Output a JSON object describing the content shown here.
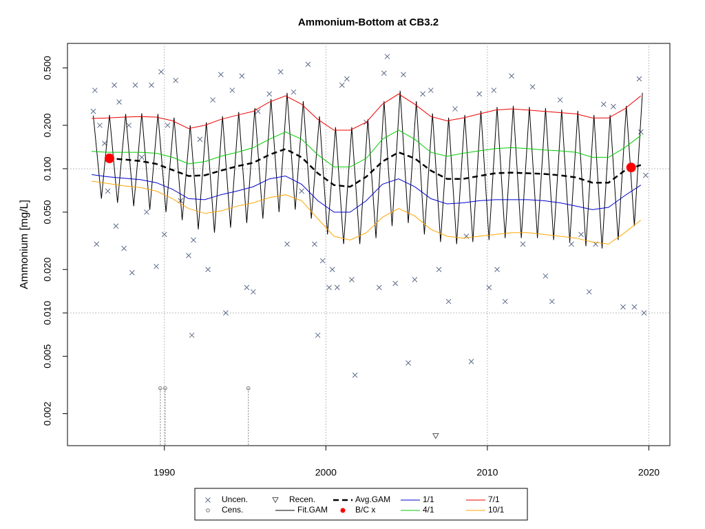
{
  "chart_data": {
    "type": "line",
    "title": "Ammonium-Bottom at CB3.2",
    "y_label": "Ammonium [mg/L]",
    "log_y": true,
    "xlim": [
      1984,
      2021.3
    ],
    "ylim": [
      0.0012,
      0.74
    ],
    "xticks": [
      1990,
      2000,
      2010,
      2020
    ],
    "yticks": [
      0.002,
      0.005,
      {
        "value": 0.01,
        "label": "0.010"
      },
      {
        "value": 0.02,
        "label": "0.020"
      },
      {
        "value": 0.05,
        "label": "0.050"
      },
      {
        "value": 0.1,
        "label": "0.100"
      },
      {
        "value": 0.2,
        "label": "0.200"
      },
      {
        "value": 0.5,
        "label": "0.500"
      }
    ],
    "ygrid": [
      0.01,
      0.1
    ],
    "xgrid": true,
    "legend": "bottom",
    "series": [
      {
        "name": "Uncen.",
        "marker": "x",
        "color": "#5a6a88",
        "x": [
          1985.6,
          1985.7,
          1985.8,
          1986.0,
          1986.3,
          1986.5,
          1986.9,
          1987.0,
          1987.2,
          1987.5,
          1987.8,
          1988.0,
          1988.2,
          1988.6,
          1988.9,
          1989.2,
          1989.5,
          1989.8,
          1990.0,
          1990.2,
          1990.7,
          1991.0,
          1991.5,
          1991.8,
          1991.7,
          1992.2,
          1992.7,
          1993.0,
          1993.5,
          1993.8,
          1994.2,
          1994.8,
          1995.1,
          1995.5,
          1995.8,
          1996.5,
          1997.2,
          1997.6,
          1998.0,
          1998.5,
          1998.9,
          1999.3,
          1999.5,
          1999.8,
          2000.2,
          2000.4,
          2000.7,
          2001.0,
          2001.3,
          2001.6,
          2001.8,
          2002.5,
          2003.3,
          2003.6,
          2003.8,
          2004.3,
          2004.8,
          2005.1,
          2005.5,
          2006.0,
          2006.5,
          2007.0,
          2007.6,
          2008.0,
          2008.7,
          2009.0,
          2009.5,
          2010.1,
          2010.4,
          2010.6,
          2011.1,
          2011.5,
          2012.2,
          2012.8,
          2013.6,
          2014.0,
          2014.5,
          2015.2,
          2015.8,
          2016.3,
          2016.7,
          2017.2,
          2017.8,
          2018.4,
          2019.1,
          2019.4,
          2019.7,
          2019.5,
          2019.8
        ],
        "values": [
          0.25,
          0.35,
          0.03,
          0.2,
          0.15,
          0.07,
          0.38,
          0.04,
          0.29,
          0.028,
          0.2,
          0.019,
          0.38,
          0.12,
          0.05,
          0.38,
          0.021,
          0.47,
          0.035,
          0.2,
          0.41,
          0.06,
          0.025,
          0.032,
          0.007,
          0.16,
          0.02,
          0.3,
          0.45,
          0.01,
          0.35,
          0.44,
          0.015,
          0.014,
          0.25,
          0.33,
          0.47,
          0.03,
          0.34,
          0.07,
          0.53,
          0.03,
          0.007,
          0.023,
          0.015,
          0.02,
          0.015,
          0.38,
          0.42,
          0.017,
          0.0037,
          0.21,
          0.015,
          0.46,
          0.6,
          0.016,
          0.45,
          0.0045,
          0.017,
          0.33,
          0.35,
          0.02,
          0.012,
          0.26,
          0.034,
          0.0046,
          0.33,
          0.015,
          0.35,
          0.02,
          0.012,
          0.44,
          0.03,
          0.37,
          0.018,
          0.012,
          0.3,
          0.03,
          0.035,
          0.014,
          0.03,
          0.28,
          0.27,
          0.011,
          0.011,
          0.42,
          0.01,
          0.18,
          0.09
        ]
      },
      {
        "name": "Cens.",
        "marker": "circle",
        "color": "#777777",
        "x": [
          1989.75,
          1990.05,
          1995.2
        ],
        "values": [
          0.003,
          0.003,
          0.003
        ]
      },
      {
        "name": "Recen.",
        "marker": "triangle",
        "color": "#555555",
        "x": [
          2006.8
        ],
        "values": [
          0.0014
        ]
      },
      {
        "name": "Fit.GAM",
        "marker": "line",
        "color": "#000000",
        "x": [
          1985.6,
          1986.1,
          1986.6,
          1987.1,
          1987.6,
          1988.1,
          1988.6,
          1989.1,
          1989.6,
          1990.1,
          1990.6,
          1991.1,
          1991.6,
          1992.1,
          1992.6,
          1993.1,
          1993.6,
          1994.1,
          1994.6,
          1995.1,
          1995.6,
          1996.1,
          1996.6,
          1997.1,
          1997.6,
          1998.1,
          1998.6,
          1999.1,
          1999.6,
          2000.1,
          2000.6,
          2001.1,
          2001.6,
          2002.1,
          2002.6,
          2003.1,
          2003.6,
          2004.1,
          2004.6,
          2005.1,
          2005.6,
          2006.1,
          2006.6,
          2007.1,
          2007.6,
          2008.1,
          2008.6,
          2009.1,
          2009.6,
          2010.1,
          2010.6,
          2011.1,
          2011.6,
          2012.1,
          2012.6,
          2013.1,
          2013.6,
          2014.1,
          2014.6,
          2015.1,
          2015.6,
          2016.1,
          2016.6,
          2017.1,
          2017.6,
          2018.1,
          2018.6,
          2019.1,
          2019.6
        ],
        "values": [
          0.234,
          0.062,
          0.236,
          0.058,
          0.24,
          0.055,
          0.242,
          0.052,
          0.24,
          0.05,
          0.226,
          0.044,
          0.2,
          0.038,
          0.21,
          0.036,
          0.231,
          0.039,
          0.247,
          0.042,
          0.263,
          0.045,
          0.305,
          0.05,
          0.336,
          0.052,
          0.294,
          0.045,
          0.231,
          0.035,
          0.194,
          0.03,
          0.194,
          0.03,
          0.22,
          0.033,
          0.294,
          0.04,
          0.347,
          0.042,
          0.294,
          0.035,
          0.242,
          0.031,
          0.226,
          0.03,
          0.236,
          0.031,
          0.252,
          0.032,
          0.268,
          0.033,
          0.273,
          0.033,
          0.268,
          0.033,
          0.263,
          0.032,
          0.257,
          0.031,
          0.252,
          0.029,
          0.236,
          0.028,
          0.236,
          0.032,
          0.273,
          0.04,
          0.336
        ]
      },
      {
        "name": "Avg.GAM",
        "marker": "line",
        "dash": true,
        "color": "#000000",
        "x": [
          1985.5,
          1986.5,
          1987.5,
          1988.5,
          1989.5,
          1990.5,
          1991.5,
          1992.5,
          1993.5,
          1994.5,
          1995.5,
          1996.5,
          1997.5,
          1998.5,
          1999.5,
          2000.5,
          2001.5,
          2002.5,
          2003.5,
          2004.5,
          2005.5,
          2006.5,
          2007.5,
          2008.5,
          2009.5,
          2010.5,
          2011.5,
          2012.5,
          2013.5,
          2014.5,
          2015.5,
          2016.5,
          2017.5,
          2018.5,
          2019.5
        ],
        "values": [
          null,
          0.118,
          0.116,
          0.113,
          0.108,
          0.098,
          0.089,
          0.09,
          0.097,
          0.104,
          0.11,
          0.125,
          0.137,
          0.12,
          0.093,
          0.077,
          0.075,
          0.088,
          0.112,
          0.13,
          0.118,
          0.097,
          0.085,
          0.085,
          0.089,
          0.093,
          0.094,
          0.093,
          0.092,
          0.09,
          0.087,
          0.08,
          0.08,
          0.097,
          0.106
        ]
      },
      {
        "name": "B/C x",
        "marker": "dot",
        "color": "#ff0000",
        "x": [
          1986.6,
          2018.9
        ],
        "values": [
          0.118,
          0.102
        ]
      },
      {
        "name": "1/1",
        "marker": "line",
        "color": "#0000cc",
        "x": [
          1985.5,
          1986.5,
          1987.5,
          1988.5,
          1989.5,
          1990.5,
          1991.5,
          1992.5,
          1993.5,
          1994.5,
          1995.5,
          1996.5,
          1997.5,
          1998.5,
          1999.5,
          2000.5,
          2001.5,
          2002.5,
          2003.5,
          2004.5,
          2005.5,
          2006.5,
          2007.5,
          2008.5,
          2009.5,
          2010.5,
          2011.5,
          2012.5,
          2013.5,
          2014.5,
          2015.5,
          2016.5,
          2017.5,
          2018.5,
          2019.5
        ],
        "values": [
          0.091,
          0.088,
          0.086,
          0.084,
          0.08,
          0.072,
          0.062,
          0.061,
          0.066,
          0.07,
          0.075,
          0.085,
          0.089,
          0.078,
          0.06,
          0.05,
          0.05,
          0.06,
          0.078,
          0.085,
          0.075,
          0.062,
          0.057,
          0.058,
          0.06,
          0.061,
          0.061,
          0.061,
          0.06,
          0.058,
          0.055,
          0.052,
          0.054,
          0.065,
          0.077
        ]
      },
      {
        "name": "4/1",
        "marker": "line",
        "color": "#00cc00",
        "x": [
          1985.5,
          1986.5,
          1987.5,
          1988.5,
          1989.5,
          1990.5,
          1991.5,
          1992.5,
          1993.5,
          1994.5,
          1995.5,
          1996.5,
          1997.5,
          1998.5,
          1999.5,
          2000.5,
          2001.5,
          2002.5,
          2003.5,
          2004.5,
          2005.5,
          2006.5,
          2007.5,
          2008.5,
          2009.5,
          2010.5,
          2011.5,
          2012.5,
          2013.5,
          2014.5,
          2015.5,
          2016.5,
          2017.5,
          2018.5,
          2019.5
        ],
        "values": [
          0.132,
          0.13,
          0.13,
          0.13,
          0.128,
          0.12,
          0.108,
          0.112,
          0.122,
          0.13,
          0.14,
          0.16,
          0.18,
          0.16,
          0.125,
          0.103,
          0.103,
          0.118,
          0.16,
          0.185,
          0.16,
          0.13,
          0.122,
          0.128,
          0.133,
          0.138,
          0.14,
          0.138,
          0.135,
          0.133,
          0.13,
          0.12,
          0.12,
          0.14,
          0.17
        ]
      },
      {
        "name": "7/1",
        "marker": "line",
        "color": "#ee0000",
        "x": [
          1985.5,
          1986.5,
          1987.5,
          1988.5,
          1989.5,
          1990.5,
          1991.5,
          1992.5,
          1993.5,
          1994.5,
          1995.5,
          1996.5,
          1997.5,
          1998.5,
          1999.5,
          2000.5,
          2001.5,
          2002.5,
          2003.5,
          2004.5,
          2005.5,
          2006.5,
          2007.5,
          2008.5,
          2009.5,
          2010.5,
          2011.5,
          2012.5,
          2013.5,
          2014.5,
          2015.5,
          2016.5,
          2017.5,
          2018.5,
          2019.5
        ],
        "values": [
          0.223,
          0.225,
          0.228,
          0.23,
          0.228,
          0.215,
          0.19,
          0.2,
          0.22,
          0.235,
          0.25,
          0.29,
          0.32,
          0.28,
          0.22,
          0.185,
          0.185,
          0.21,
          0.28,
          0.33,
          0.28,
          0.23,
          0.215,
          0.225,
          0.24,
          0.255,
          0.26,
          0.255,
          0.25,
          0.245,
          0.24,
          0.225,
          0.225,
          0.26,
          0.32
        ]
      },
      {
        "name": "10/1",
        "marker": "line",
        "color": "#ffa500",
        "x": [
          1985.5,
          1986.5,
          1987.5,
          1988.5,
          1989.5,
          1990.5,
          1991.5,
          1992.5,
          1993.5,
          1994.5,
          1995.5,
          1996.5,
          1997.5,
          1998.5,
          1999.5,
          2000.5,
          2001.5,
          2002.5,
          2003.5,
          2004.5,
          2005.5,
          2006.5,
          2007.5,
          2008.5,
          2009.5,
          2010.5,
          2011.5,
          2012.5,
          2013.5,
          2014.5,
          2015.5,
          2016.5,
          2017.5,
          2018.5,
          2019.5
        ],
        "values": [
          0.082,
          0.079,
          0.076,
          0.074,
          0.07,
          0.062,
          0.053,
          0.049,
          0.051,
          0.055,
          0.058,
          0.063,
          0.066,
          0.06,
          0.045,
          0.034,
          0.032,
          0.036,
          0.046,
          0.053,
          0.047,
          0.038,
          0.034,
          0.033,
          0.034,
          0.035,
          0.036,
          0.036,
          0.035,
          0.034,
          0.033,
          0.031,
          0.03,
          0.036,
          0.044
        ]
      }
    ]
  }
}
